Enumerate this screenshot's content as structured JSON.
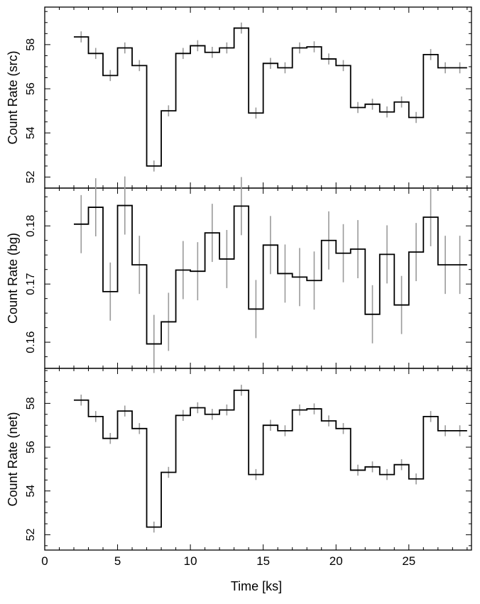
{
  "figure": {
    "xlabel": "Time [ks]"
  },
  "chart_data": [
    {
      "type": "line",
      "panel": "src",
      "ylabel": "Count Rate (src)",
      "xlim": [
        0,
        29.3
      ],
      "ylim": [
        51.5,
        59.7
      ],
      "xticks": [
        0,
        5,
        10,
        15,
        20,
        25
      ],
      "yticks": [
        52,
        54,
        56,
        58
      ],
      "x": [
        2.5,
        3.5,
        4.5,
        5.5,
        6.5,
        7.5,
        8.5,
        9.5,
        10.5,
        11.5,
        12.5,
        13.5,
        14.5,
        15.5,
        16.5,
        17.5,
        18.5,
        19.5,
        20.5,
        21.5,
        22.5,
        23.5,
        24.5,
        25.5,
        26.5,
        27.5,
        28.5
      ],
      "x_edges": [
        2.0,
        3.0,
        4.0,
        5.0,
        6.0,
        7.0,
        8.0,
        9.0,
        10.0,
        11.0,
        12.0,
        13.0,
        14.0,
        15.0,
        16.0,
        17.0,
        18.0,
        19.0,
        20.0,
        21.0,
        22.0,
        23.0,
        24.0,
        25.0,
        26.0,
        27.0,
        28.0,
        29.0
      ],
      "y": [
        58.35,
        57.6,
        56.6,
        57.85,
        57.05,
        52.5,
        55.0,
        57.6,
        57.95,
        57.65,
        57.85,
        58.75,
        54.9,
        57.15,
        56.95,
        57.85,
        57.9,
        57.35,
        57.05,
        55.15,
        55.3,
        54.95,
        55.4,
        54.7,
        57.55,
        56.95,
        56.95
      ],
      "yerr": [
        0.25,
        0.25,
        0.25,
        0.25,
        0.25,
        0.25,
        0.25,
        0.25,
        0.25,
        0.25,
        0.25,
        0.25,
        0.25,
        0.25,
        0.25,
        0.25,
        0.25,
        0.25,
        0.25,
        0.25,
        0.25,
        0.25,
        0.25,
        0.25,
        0.25,
        0.25,
        0.25
      ]
    },
    {
      "type": "line",
      "panel": "bg",
      "ylabel": "Count Rate (bg)",
      "xlim": [
        0,
        29.3
      ],
      "ylim": [
        0.1555,
        0.1865
      ],
      "xticks": [
        0,
        5,
        10,
        15,
        20,
        25
      ],
      "yticks": [
        0.16,
        0.17,
        0.18
      ],
      "x": [
        2.5,
        3.5,
        4.5,
        5.5,
        6.5,
        7.5,
        8.5,
        9.5,
        10.5,
        11.5,
        12.5,
        13.5,
        14.5,
        15.5,
        16.5,
        17.5,
        18.5,
        19.5,
        20.5,
        21.5,
        22.5,
        23.5,
        24.5,
        25.5,
        26.5,
        27.5,
        28.5
      ],
      "x_edges": [
        2.0,
        3.0,
        4.0,
        5.0,
        6.0,
        7.0,
        8.0,
        9.0,
        10.0,
        11.0,
        12.0,
        13.0,
        14.0,
        15.0,
        16.0,
        17.0,
        18.0,
        19.0,
        20.0,
        21.0,
        22.0,
        23.0,
        24.0,
        25.0,
        26.0,
        27.0,
        28.0,
        29.0
      ],
      "y": [
        0.1803,
        0.1832,
        0.1687,
        0.1835,
        0.1733,
        0.1597,
        0.1635,
        0.1724,
        0.1722,
        0.1788,
        0.1743,
        0.1834,
        0.1657,
        0.1767,
        0.1718,
        0.1712,
        0.1706,
        0.1775,
        0.1753,
        0.176,
        0.1648,
        0.1751,
        0.1664,
        0.1755,
        0.1815,
        0.1733,
        0.1733
      ],
      "yerr": [
        0.005,
        0.005,
        0.005,
        0.005,
        0.005,
        0.005,
        0.005,
        0.005,
        0.005,
        0.005,
        0.005,
        0.005,
        0.005,
        0.005,
        0.005,
        0.005,
        0.005,
        0.005,
        0.005,
        0.005,
        0.005,
        0.005,
        0.005,
        0.005,
        0.005,
        0.005,
        0.005
      ]
    },
    {
      "type": "line",
      "panel": "net",
      "ylabel": "Count Rate (net)",
      "xlim": [
        0,
        29.3
      ],
      "ylim": [
        51.3,
        59.6
      ],
      "xticks": [
        0,
        5,
        10,
        15,
        20,
        25
      ],
      "yticks": [
        52,
        54,
        56,
        58
      ],
      "x": [
        2.5,
        3.5,
        4.5,
        5.5,
        6.5,
        7.5,
        8.5,
        9.5,
        10.5,
        11.5,
        12.5,
        13.5,
        14.5,
        15.5,
        16.5,
        17.5,
        18.5,
        19.5,
        20.5,
        21.5,
        22.5,
        23.5,
        24.5,
        25.5,
        26.5,
        27.5,
        28.5
      ],
      "x_edges": [
        2.0,
        3.0,
        4.0,
        5.0,
        6.0,
        7.0,
        8.0,
        9.0,
        10.0,
        11.0,
        12.0,
        13.0,
        14.0,
        15.0,
        16.0,
        17.0,
        18.0,
        19.0,
        20.0,
        21.0,
        22.0,
        23.0,
        24.0,
        25.0,
        26.0,
        27.0,
        28.0,
        29.0
      ],
      "y": [
        58.15,
        57.4,
        56.4,
        57.65,
        56.85,
        52.35,
        54.85,
        57.45,
        57.8,
        57.5,
        57.7,
        58.6,
        54.75,
        57.0,
        56.75,
        57.7,
        57.75,
        57.2,
        56.85,
        54.95,
        55.1,
        54.75,
        55.2,
        54.55,
        57.4,
        56.75,
        56.75
      ],
      "yerr": [
        0.25,
        0.25,
        0.25,
        0.25,
        0.25,
        0.25,
        0.25,
        0.25,
        0.25,
        0.25,
        0.25,
        0.25,
        0.25,
        0.25,
        0.25,
        0.25,
        0.25,
        0.25,
        0.25,
        0.25,
        0.25,
        0.25,
        0.25,
        0.25,
        0.25,
        0.25,
        0.25
      ]
    }
  ]
}
